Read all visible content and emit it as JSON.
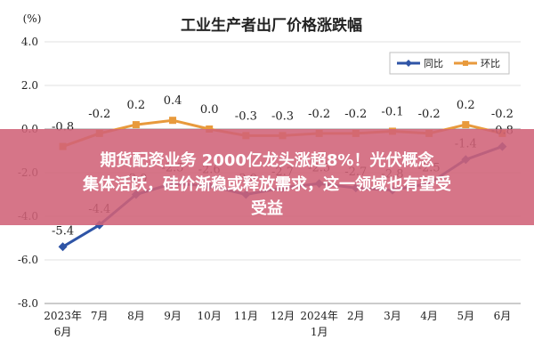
{
  "chart_data": {
    "type": "line",
    "title": "工业生产者出厂价格涨跌幅",
    "unit_label": "(%)",
    "categories": [
      "2023年6月",
      "7月",
      "8月",
      "9月",
      "10月",
      "11月",
      "12月",
      "2024年1月",
      "2月",
      "3月",
      "4月",
      "5月",
      "6月"
    ],
    "category_lines": [
      [
        "2023年",
        "6月"
      ],
      [
        "7月"
      ],
      [
        "8月"
      ],
      [
        "9月"
      ],
      [
        "10月"
      ],
      [
        "11月"
      ],
      [
        "12月"
      ],
      [
        "2024年",
        "1月"
      ],
      [
        "2月"
      ],
      [
        "3月"
      ],
      [
        "4月"
      ],
      [
        "5月"
      ],
      [
        "6月"
      ]
    ],
    "series": [
      {
        "name": "同比",
        "color": "#2e54a6",
        "values": [
          -5.4,
          -4.4,
          -3.0,
          -2.5,
          -2.6,
          -3.0,
          -2.7,
          -2.5,
          -2.7,
          -2.8,
          -2.5,
          -1.4,
          -0.8
        ],
        "labels": [
          "-5.4",
          "-4.4",
          "-3.0",
          "-2.5",
          "-2.6",
          "-3.0",
          "-2.7",
          "-2.5",
          "-2.7",
          "-2.8",
          "-2.5",
          "-1.4",
          "-0.8"
        ]
      },
      {
        "name": "环比",
        "color": "#e89a3c",
        "values": [
          -0.8,
          -0.2,
          0.2,
          0.4,
          0.0,
          -0.3,
          -0.3,
          -0.2,
          -0.2,
          -0.1,
          -0.2,
          0.2,
          -0.2
        ],
        "labels": [
          "-0.8",
          "-0.2",
          "0.2",
          "0.4",
          "0.0",
          "-0.3",
          "-0.3",
          "-0.2",
          "-0.2",
          "-0.1",
          "-0.2",
          "0.2",
          "-0.2"
        ]
      }
    ],
    "y_ticks": [
      "4.0",
      "2.0",
      "0.0",
      "-2.0",
      "-4.0",
      "-6.0",
      "-8.0"
    ],
    "ylim": [
      -8,
      4
    ],
    "y_tick_step": 2,
    "grid": true,
    "legend_position": "top-right"
  },
  "overlay": {
    "banner_line1": "期货配资业务 2000亿龙头涨超8%！光伏概念",
    "banner_line2": "集体活跃，硅价渐稳或释放需求，这一领域也有望受",
    "banner_line3": "受益"
  }
}
